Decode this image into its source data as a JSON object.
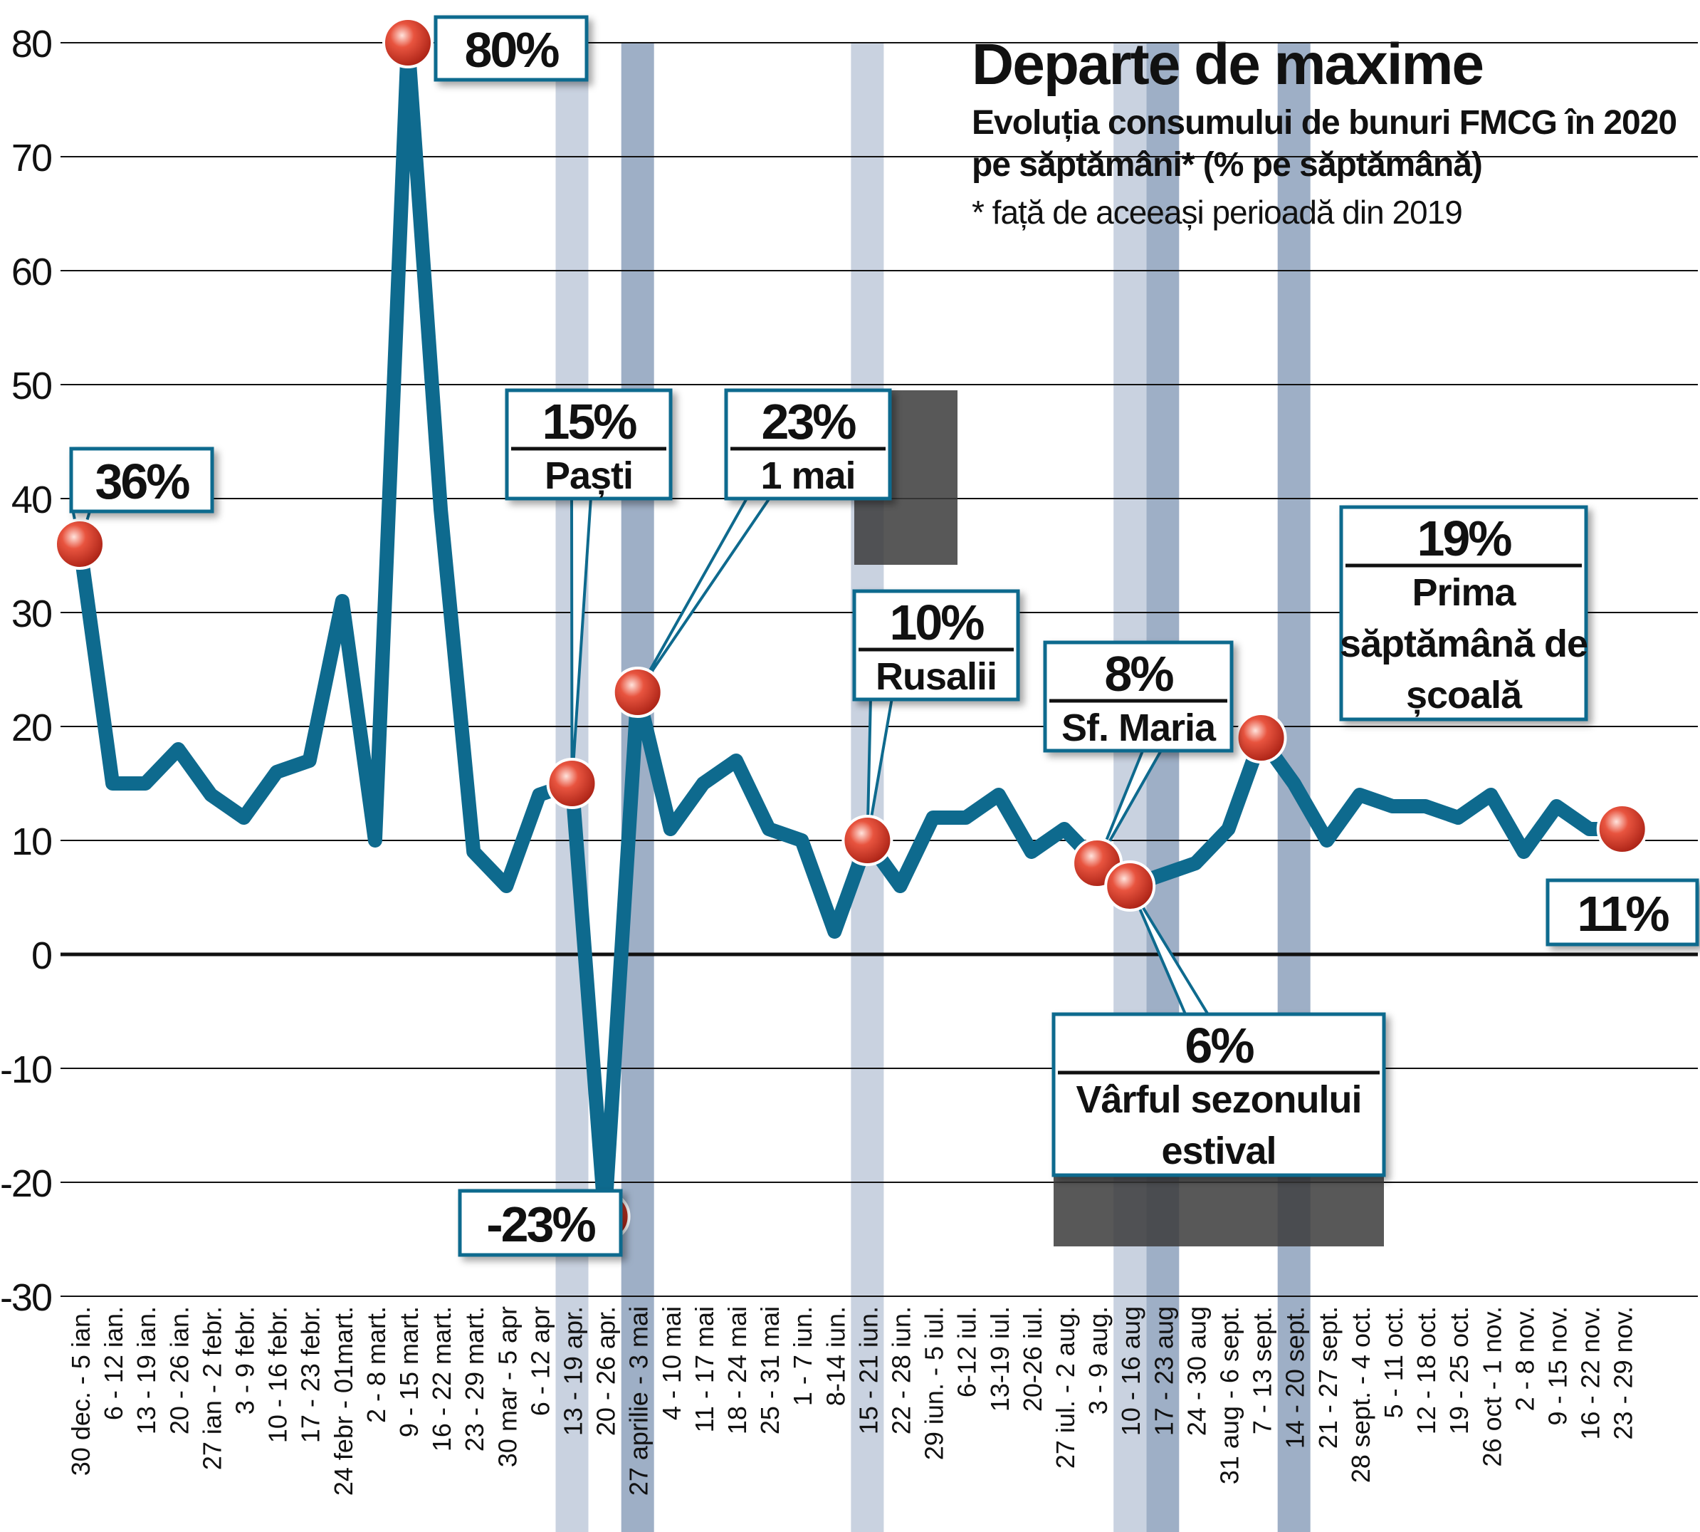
{
  "title": "Departe de maxime",
  "subtitle": "Evoluția consumului de bunuri FMCG în 2020 pe săptămâni* (% pe săptămână)",
  "note": "* față de aceeași perioadă din 2019",
  "colors": {
    "line": "#0e6a8e",
    "box_border": "#0e6a8e",
    "band_light": "#c9d2e0",
    "band_dark": "#9eafc6",
    "marker": "#d83a2a",
    "grid": "#111111"
  },
  "chart_data": {
    "type": "line",
    "title": "Departe de maxime",
    "ylim": [
      -30,
      80
    ],
    "yticks": [
      80,
      70,
      60,
      50,
      40,
      30,
      20,
      10,
      0,
      -10,
      -20,
      -30
    ],
    "grid": true,
    "categories": [
      "30 dec. - 5 ian.",
      "6 - 12 ian.",
      "13 - 19 ian.",
      "20 - 26 ian.",
      "27 ian - 2 febr.",
      "3 - 9 febr.",
      "10 - 16 febr.",
      "17 - 23 febr.",
      "24 febr - 01mart.",
      "2 - 8 mart.",
      "9 - 15 mart.",
      "16 - 22 mart.",
      "23 - 29 mart.",
      "30 mar - 5 apr",
      "6 - 12 apr",
      "13 - 19 apr.",
      "20 - 26 apr.",
      "27 aprilie - 3 mai",
      "4 - 10 mai",
      "11 - 17 mai",
      "18 - 24 mai",
      "25 - 31 mai",
      "1 - 7 iun.",
      "8-14 iun.",
      "15 - 21 iun.",
      "22 - 28 iun.",
      "29 iun. - 5 iul.",
      "6-12 iul.",
      "13-19 iul.",
      "20-26 iul.",
      "27 iul. - 2 aug.",
      "3 - 9 aug.",
      "10 - 16 aug",
      "17 - 23 aug",
      "24 - 30 aug",
      "31 aug - 6 sept.",
      "7 - 13 sept.",
      "14 - 20 sept.",
      "21 - 27 sept.",
      "28 sept. - 4 oct.",
      "5 - 11 oct.",
      "12 - 18 oct.",
      "19 - 25 oct.",
      "26 oct - 1 nov.",
      "2 - 8 nov.",
      "9 - 15 nov.",
      "16 - 22 nov.",
      "23 - 29 nov."
    ],
    "series": [
      {
        "values": [
          36,
          15,
          15,
          18,
          14,
          12,
          16,
          17,
          31,
          10,
          80,
          39,
          9,
          6,
          14,
          15,
          -23,
          23,
          11,
          15,
          17,
          11,
          10,
          2,
          10,
          6,
          12,
          12,
          14,
          9,
          11,
          8,
          6,
          7,
          8,
          11,
          19,
          15,
          10,
          14,
          13,
          13,
          12,
          14,
          9,
          13,
          11,
          11
        ]
      }
    ],
    "highlight_bands": [
      {
        "category": "13 - 19 apr.",
        "shade": "light"
      },
      {
        "category": "27 aprilie - 3 mai",
        "shade": "dark"
      },
      {
        "category": "15 - 21 iun.",
        "shade": "light"
      },
      {
        "category": "10 - 16 aug",
        "shade": "light"
      },
      {
        "category": "17 - 23 aug",
        "shade": "dark"
      },
      {
        "category": "14 - 20 sept.",
        "shade": "dark"
      }
    ],
    "annotations": [
      {
        "index": 0,
        "value": "36%",
        "label": ""
      },
      {
        "index": 10,
        "value": "80%",
        "label": ""
      },
      {
        "index": 15,
        "value": "15%",
        "label": "Paști"
      },
      {
        "index": 16,
        "value": "-23%",
        "label": ""
      },
      {
        "index": 17,
        "value": "23%",
        "label": "1 mai"
      },
      {
        "index": 24,
        "value": "10%",
        "label": "Rusalii"
      },
      {
        "index": 31,
        "value": "8%",
        "label": "Sf. Maria"
      },
      {
        "index": 32,
        "value": "6%",
        "label": "Vârful sezonului estival"
      },
      {
        "index": 36,
        "value": "19%",
        "label": "Prima săptămână de școală"
      },
      {
        "index": 47,
        "value": "11%",
        "label": ""
      }
    ]
  }
}
